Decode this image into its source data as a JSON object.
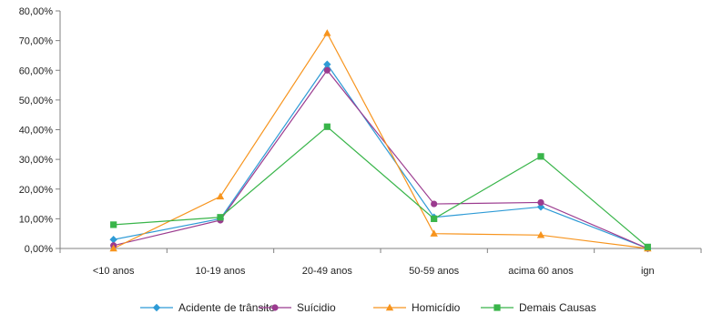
{
  "chart_data": {
    "type": "line",
    "categories": [
      "<10 anos",
      "10-19 anos",
      "20-49 anos",
      "50-59 anos",
      "acima 60 anos",
      "ign"
    ],
    "ylim": [
      0,
      80
    ],
    "yticks": [
      "0,00%",
      "10,00%",
      "20,00%",
      "30,00%",
      "40,00%",
      "50,00%",
      "60,00%",
      "70,00%",
      "80,00%"
    ],
    "grid": false,
    "legend_position": "bottom",
    "series": [
      {
        "name": "Acidente de trânsito",
        "color": "#2e9bd6",
        "marker": "diamond",
        "values": [
          3.0,
          10.0,
          62.0,
          10.5,
          14.0,
          0.0
        ]
      },
      {
        "name": "Suícidio",
        "color": "#9b3b8f",
        "marker": "circle",
        "values": [
          1.0,
          9.5,
          60.0,
          15.0,
          15.5,
          0.0
        ]
      },
      {
        "name": "Homicídio",
        "color": "#f7941d",
        "marker": "triangle",
        "values": [
          0.0,
          17.5,
          72.5,
          5.0,
          4.5,
          0.0
        ]
      },
      {
        "name": "Demais Causas",
        "color": "#39b54a",
        "marker": "square",
        "values": [
          8.0,
          10.5,
          41.0,
          10.0,
          31.0,
          0.5
        ]
      }
    ]
  }
}
